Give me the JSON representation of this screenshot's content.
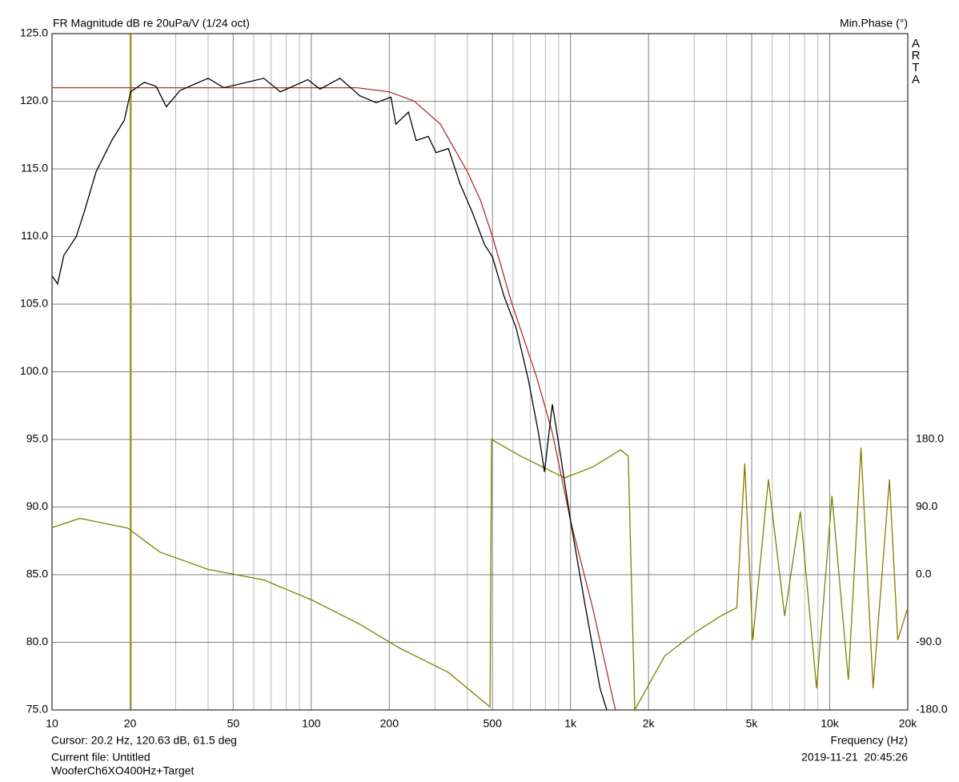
{
  "chart_data": {
    "type": "line",
    "title": "FR Magnitude dB re 20uPa/V (1/24 oct)",
    "y2_title": "Min.Phase (°)",
    "brand": "ARTA",
    "x_title": "Frequency (Hz)",
    "cursor_text": "Cursor: 20.2 Hz, 120.63 dB, 61.5 deg",
    "file_text": "Current file: Untitled",
    "file_name": "WooferCh6XO400Hz+Target",
    "date_text": "2019-11-21  20:45:26",
    "log_x": true,
    "grid": true,
    "cursor_x": 20.2,
    "cursor_color": "#a8a800",
    "xlim": [
      10,
      20000
    ],
    "xticks": [
      10,
      20,
      50,
      100,
      200,
      500,
      {
        "value": 1000,
        "label": "1k"
      },
      {
        "value": 2000,
        "label": "2k"
      },
      {
        "value": 5000,
        "label": "5k"
      },
      {
        "value": 10000,
        "label": "10k"
      },
      {
        "value": 20000,
        "label": "20k"
      }
    ],
    "xgrid": [
      30,
      40,
      60,
      70,
      80,
      90,
      300,
      400,
      600,
      700,
      800,
      900,
      3000,
      4000,
      6000,
      7000,
      8000,
      9000
    ],
    "ylim": [
      75,
      125
    ],
    "yticks": [
      {
        "value": 125,
        "label": "125.0"
      },
      {
        "value": 120,
        "label": "120.0"
      },
      {
        "value": 115,
        "label": "115.0"
      },
      {
        "value": 110,
        "label": "110.0"
      },
      {
        "value": 105,
        "label": "105.0"
      },
      {
        "value": 100,
        "label": "100.0"
      },
      {
        "value": 95,
        "label": "95.0"
      },
      {
        "value": 90,
        "label": "90.0"
      },
      {
        "value": 85,
        "label": "85.0"
      },
      {
        "value": 80,
        "label": "80.0"
      },
      {
        "value": 75,
        "label": "75.0"
      }
    ],
    "y2lim": [
      -180,
      720
    ],
    "y2ticks": [
      {
        "value": 180,
        "label": "180.0"
      },
      {
        "value": 90,
        "label": "90.0"
      },
      {
        "value": 0,
        "label": "0.0"
      },
      {
        "value": -90,
        "label": "-90.0"
      },
      {
        "value": -180,
        "label": "-180.0"
      }
    ],
    "series": [
      {
        "color": "#b03030",
        "x": [
          10,
          150,
          200,
          250,
          315,
          400,
          449,
          500,
          595,
          738,
          851,
          1000,
          1220,
          1490
        ],
        "values": [
          121.0,
          121.0,
          120.7,
          120.0,
          118.3,
          114.8,
          112.7,
          110.0,
          105.0,
          99.7,
          95.5,
          89.0,
          82.5,
          75.0
        ]
      },
      {
        "color": "#000000",
        "x": [
          10,
          10.5,
          11.1,
          12.4,
          13.3,
          14.8,
          17.0,
          19.0,
          20.1,
          22.7,
          25.2,
          27.6,
          31.2,
          40,
          46,
          65.6,
          76,
          97,
          108,
          129,
          154,
          178,
          203,
          212,
          237,
          254,
          283,
          303,
          338,
          375,
          418,
          466,
          500,
          554,
          618,
          688,
          752,
          794,
          851,
          916,
          1000,
          1130,
          1300,
          1380
        ],
        "values": [
          107.1,
          106.5,
          108.6,
          110.0,
          111.8,
          114.8,
          117.1,
          118.6,
          120.7,
          121.4,
          121.1,
          119.6,
          120.8,
          121.7,
          121.0,
          121.7,
          120.7,
          121.6,
          120.9,
          121.7,
          120.4,
          119.9,
          120.3,
          118.3,
          119.2,
          117.1,
          117.4,
          116.2,
          116.5,
          113.9,
          111.8,
          109.4,
          108.5,
          105.6,
          103.2,
          99.4,
          95.5,
          92.6,
          97.6,
          93.8,
          89.0,
          83.1,
          76.6,
          75.0
        ]
      },
      {
        "color": "#808000",
        "axis": "y2",
        "x": [
          10,
          12.8,
          19.6,
          26.1,
          40,
          65.7,
          101,
          154,
          220,
          338,
          489,
          496,
          641,
          851,
          948,
          1215,
          1560,
          1670,
          1770,
          2310,
          3050,
          3800,
          4380,
          4700,
          5050,
          5800,
          6700,
          7700,
          8900,
          10200,
          11800,
          13200,
          14700,
          17000,
          18300,
          20000
        ],
        "values": [
          62.5,
          75,
          62,
          30,
          7,
          -7,
          -34,
          -66,
          -98,
          -130,
          -176,
          180,
          158,
          137,
          129,
          143,
          166,
          158,
          -180,
          -108,
          -76,
          -55,
          -44,
          148,
          -87,
          127,
          -55,
          84,
          -151,
          105,
          -140,
          169,
          -151,
          127,
          -87,
          -44
        ]
      }
    ]
  }
}
